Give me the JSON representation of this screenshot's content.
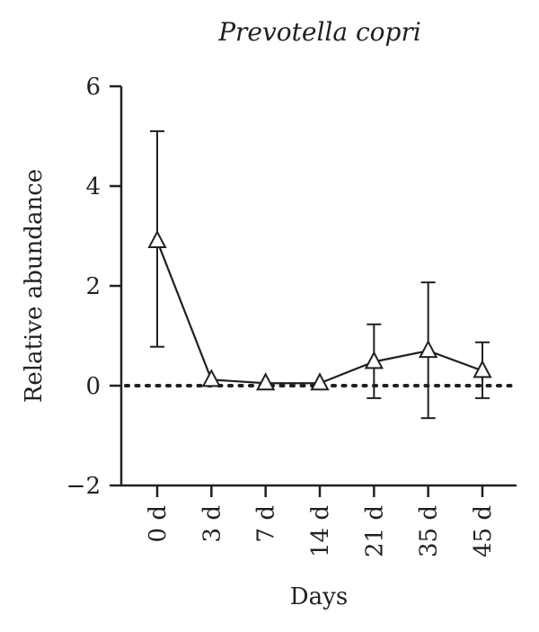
{
  "chart_data": {
    "type": "line",
    "title": "Prevotella copri",
    "xlabel": "Days",
    "ylabel": "Relative abundance",
    "categories": [
      "0 d",
      "3 d",
      "7 d",
      "14 d",
      "21 d",
      "35 d",
      "45 d"
    ],
    "series": [
      {
        "values": [
          2.9,
          0.12,
          0.05,
          0.05,
          0.48,
          0.7,
          0.3
        ],
        "error_upper": [
          5.1,
          0.12,
          0.05,
          0.05,
          1.23,
          2.07,
          0.87
        ],
        "error_lower": [
          0.78,
          0.12,
          0.05,
          0.05,
          -0.25,
          -0.65,
          -0.25
        ],
        "marker": "open-triangle"
      }
    ],
    "yticks": [
      -2,
      0,
      2,
      4,
      6
    ],
    "ytick_labels": [
      "−2",
      "0",
      "2",
      "4",
      "6"
    ],
    "ylim": [
      -2,
      6
    ],
    "reference_line": {
      "y": 0,
      "style": "dotted"
    },
    "grid": false,
    "colors": {
      "line": "#231f20"
    }
  }
}
